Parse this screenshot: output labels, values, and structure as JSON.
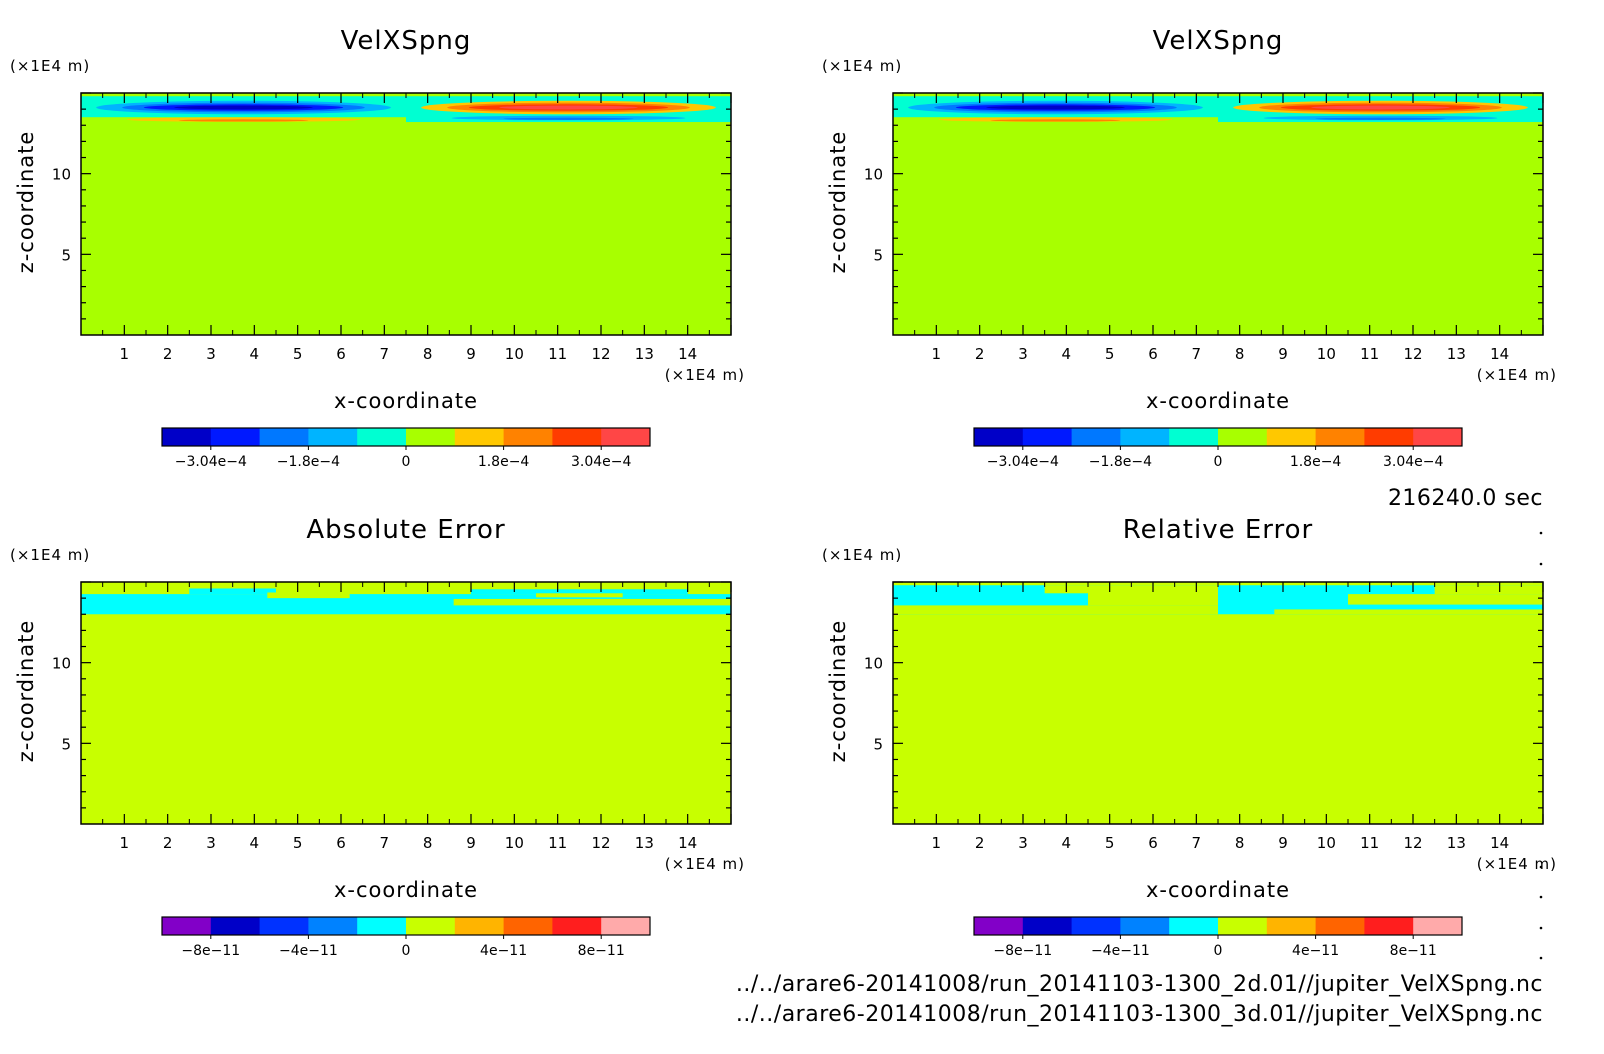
{
  "time_label": "216240.0 sec",
  "file_paths": [
    "../../arare6-20141008/run_20141103-1300_2d.01//jupiter_VelXSpng.nc",
    "../../arare6-20141008/run_20141103-1300_3d.01//jupiter_VelXSpng.nc"
  ],
  "chart_data": [
    {
      "type": "heatmap",
      "title": "VelXSpng",
      "xlabel": "x-coordinate",
      "ylabel": "z-coordinate",
      "x_unit": "(×1E4 m)",
      "y_unit": "(×1E4 m)",
      "xlim": [
        0,
        15
      ],
      "ylim": [
        0,
        15
      ],
      "x_ticks": [
        "1",
        "2",
        "3",
        "4",
        "5",
        "6",
        "7",
        "8",
        "9",
        "10",
        "11",
        "12",
        "13",
        "14"
      ],
      "y_ticks": [
        "5",
        "10"
      ],
      "background_color": "#a8ff00",
      "colorbar": {
        "colors": [
          "#0000c8",
          "#0019ff",
          "#0078ff",
          "#00b4ff",
          "#00ffd2",
          "#a8ff00",
          "#ffc800",
          "#ff8200",
          "#ff3c00",
          "#ff4646"
        ],
        "tick_labels": [
          "-3.04e-4",
          "-1.8e-4",
          "0",
          "1.8e-4",
          "3.04e-4"
        ]
      },
      "features": [
        {
          "shape": "rect",
          "x": [
            0,
            7.5
          ],
          "z": [
            13.5,
            14.8
          ],
          "color": "#00ffd2"
        },
        {
          "shape": "rect",
          "x": [
            7.5,
            15
          ],
          "z": [
            13.2,
            14.8
          ],
          "color": "#00ffd2"
        },
        {
          "shape": "ellipse",
          "cx": 3.75,
          "cz": 14.1,
          "rx": 3.4,
          "rz": 0.42,
          "color": "#00b4ff"
        },
        {
          "shape": "ellipse",
          "cx": 3.75,
          "cz": 14.1,
          "rx": 2.8,
          "rz": 0.3,
          "color": "#0078ff"
        },
        {
          "shape": "ellipse",
          "cx": 3.75,
          "cz": 14.1,
          "rx": 2.3,
          "rz": 0.2,
          "color": "#0019ff"
        },
        {
          "shape": "ellipse",
          "cx": 3.75,
          "cz": 14.1,
          "rx": 1.6,
          "rz": 0.12,
          "color": "#0000c8"
        },
        {
          "shape": "ellipse",
          "cx": 3.75,
          "cz": 13.35,
          "rx": 2.7,
          "rz": 0.14,
          "color": "#ffc800"
        },
        {
          "shape": "ellipse",
          "cx": 3.75,
          "cz": 13.3,
          "rx": 1.5,
          "rz": 0.07,
          "color": "#ff8200"
        },
        {
          "shape": "ellipse",
          "cx": 11.25,
          "cz": 14.1,
          "rx": 3.4,
          "rz": 0.42,
          "color": "#ffc800"
        },
        {
          "shape": "ellipse",
          "cx": 11.25,
          "cz": 14.1,
          "rx": 2.8,
          "rz": 0.3,
          "color": "#ff8200"
        },
        {
          "shape": "ellipse",
          "cx": 11.25,
          "cz": 14.1,
          "rx": 2.3,
          "rz": 0.2,
          "color": "#ff3c00"
        },
        {
          "shape": "ellipse",
          "cx": 11.25,
          "cz": 14.1,
          "rx": 1.6,
          "rz": 0.12,
          "color": "#ff4646"
        },
        {
          "shape": "ellipse",
          "cx": 11.25,
          "cz": 13.45,
          "rx": 2.7,
          "rz": 0.14,
          "color": "#00b4ff"
        },
        {
          "shape": "ellipse",
          "cx": 11.25,
          "cz": 13.4,
          "rx": 1.5,
          "rz": 0.07,
          "color": "#0078ff"
        }
      ]
    },
    {
      "type": "heatmap",
      "title": "VelXSpng",
      "xlabel": "x-coordinate",
      "ylabel": "z-coordinate",
      "x_unit": "(×1E4 m)",
      "y_unit": "(×1E4 m)",
      "xlim": [
        0,
        15
      ],
      "ylim": [
        0,
        15
      ],
      "x_ticks": [
        "1",
        "2",
        "3",
        "4",
        "5",
        "6",
        "7",
        "8",
        "9",
        "10",
        "11",
        "12",
        "13",
        "14"
      ],
      "y_ticks": [
        "5",
        "10"
      ],
      "background_color": "#a8ff00",
      "colorbar": {
        "colors": [
          "#0000c8",
          "#0019ff",
          "#0078ff",
          "#00b4ff",
          "#00ffd2",
          "#a8ff00",
          "#ffc800",
          "#ff8200",
          "#ff3c00",
          "#ff4646"
        ],
        "tick_labels": [
          "-3.04e-4",
          "-1.8e-4",
          "0",
          "1.8e-4",
          "3.04e-4"
        ]
      },
      "features": [
        {
          "shape": "rect",
          "x": [
            0,
            7.5
          ],
          "z": [
            13.5,
            14.8
          ],
          "color": "#00ffd2"
        },
        {
          "shape": "rect",
          "x": [
            7.5,
            15
          ],
          "z": [
            13.2,
            14.8
          ],
          "color": "#00ffd2"
        },
        {
          "shape": "ellipse",
          "cx": 3.75,
          "cz": 14.1,
          "rx": 3.4,
          "rz": 0.42,
          "color": "#00b4ff"
        },
        {
          "shape": "ellipse",
          "cx": 3.75,
          "cz": 14.1,
          "rx": 2.8,
          "rz": 0.3,
          "color": "#0078ff"
        },
        {
          "shape": "ellipse",
          "cx": 3.75,
          "cz": 14.1,
          "rx": 2.3,
          "rz": 0.2,
          "color": "#0019ff"
        },
        {
          "shape": "ellipse",
          "cx": 3.75,
          "cz": 14.1,
          "rx": 1.6,
          "rz": 0.12,
          "color": "#0000c8"
        },
        {
          "shape": "ellipse",
          "cx": 3.75,
          "cz": 13.35,
          "rx": 2.7,
          "rz": 0.14,
          "color": "#ffc800"
        },
        {
          "shape": "ellipse",
          "cx": 3.75,
          "cz": 13.3,
          "rx": 1.5,
          "rz": 0.07,
          "color": "#ff8200"
        },
        {
          "shape": "ellipse",
          "cx": 11.25,
          "cz": 14.1,
          "rx": 3.4,
          "rz": 0.42,
          "color": "#ffc800"
        },
        {
          "shape": "ellipse",
          "cx": 11.25,
          "cz": 14.1,
          "rx": 2.8,
          "rz": 0.3,
          "color": "#ff8200"
        },
        {
          "shape": "ellipse",
          "cx": 11.25,
          "cz": 14.1,
          "rx": 2.3,
          "rz": 0.2,
          "color": "#ff3c00"
        },
        {
          "shape": "ellipse",
          "cx": 11.25,
          "cz": 14.1,
          "rx": 1.6,
          "rz": 0.12,
          "color": "#ff4646"
        },
        {
          "shape": "ellipse",
          "cx": 11.25,
          "cz": 13.45,
          "rx": 2.7,
          "rz": 0.14,
          "color": "#00b4ff"
        },
        {
          "shape": "ellipse",
          "cx": 11.25,
          "cz": 13.4,
          "rx": 1.5,
          "rz": 0.07,
          "color": "#0078ff"
        }
      ]
    },
    {
      "type": "heatmap",
      "title": "Absolute Error",
      "xlabel": "x-coordinate",
      "ylabel": "z-coordinate",
      "x_unit": "(×1E4 m)",
      "y_unit": "(×1E4 m)",
      "xlim": [
        0,
        15
      ],
      "ylim": [
        0,
        15
      ],
      "x_ticks": [
        "1",
        "2",
        "3",
        "4",
        "5",
        "6",
        "7",
        "8",
        "9",
        "10",
        "11",
        "12",
        "13",
        "14"
      ],
      "y_ticks": [
        "5",
        "10"
      ],
      "background_color": "#c8ff00",
      "colorbar": {
        "colors": [
          "#8200c8",
          "#0000c8",
          "#0032ff",
          "#0082ff",
          "#00ffff",
          "#c8ff00",
          "#ffb400",
          "#ff6400",
          "#ff1e1e",
          "#ffaaaa"
        ],
        "tick_labels": [
          "-8e-11",
          "-4e-11",
          "0",
          "4e-11",
          "8e-11"
        ]
      },
      "features": [
        {
          "shape": "rect",
          "x": [
            0,
            15
          ],
          "z": [
            13.0,
            14.25
          ],
          "color": "#00ffff"
        },
        {
          "shape": "rect",
          "x": [
            2.5,
            4.5
          ],
          "z": [
            14.25,
            14.6
          ],
          "color": "#00ffff"
        },
        {
          "shape": "rect",
          "x": [
            4.3,
            6.2
          ],
          "z": [
            14.0,
            14.35
          ],
          "color": "#c8ff00"
        },
        {
          "shape": "rect",
          "x": [
            8.6,
            15
          ],
          "z": [
            13.55,
            13.95
          ],
          "color": "#c8ff00"
        },
        {
          "shape": "rect",
          "x": [
            9.0,
            14.0
          ],
          "z": [
            14.25,
            14.55
          ],
          "color": "#00ffff"
        },
        {
          "shape": "rect",
          "x": [
            10.5,
            12.5
          ],
          "z": [
            14.05,
            14.3
          ],
          "color": "#c8ff00"
        }
      ]
    },
    {
      "type": "heatmap",
      "title": "Relative Error",
      "xlabel": "x-coordinate",
      "ylabel": "z-coordinate",
      "x_unit": "(×1E4 m)",
      "y_unit": "(×1E4 m)",
      "xlim": [
        0,
        15
      ],
      "ylim": [
        0,
        15
      ],
      "x_ticks": [
        "1",
        "2",
        "3",
        "4",
        "5",
        "6",
        "7",
        "8",
        "9",
        "10",
        "11",
        "12",
        "13",
        "14"
      ],
      "y_ticks": [
        "5",
        "10"
      ],
      "background_color": "#c8ff00",
      "colorbar": {
        "colors": [
          "#8200c8",
          "#0000c8",
          "#0032ff",
          "#0082ff",
          "#00ffff",
          "#c8ff00",
          "#ffb400",
          "#ff6400",
          "#ff1e1e",
          "#ffaaaa"
        ],
        "tick_labels": [
          "-8e-11",
          "-4e-11",
          "0",
          "4e-11",
          "8e-11"
        ]
      },
      "features": [
        {
          "shape": "rect",
          "x": [
            0,
            15
          ],
          "z": [
            13.0,
            14.8
          ],
          "color": "#00ffff"
        },
        {
          "shape": "rect",
          "x": [
            0,
            7.5
          ],
          "z": [
            13.0,
            13.55
          ],
          "color": "#c8ff00"
        },
        {
          "shape": "rect",
          "x": [
            4.5,
            7.5
          ],
          "z": [
            13.55,
            14.8
          ],
          "color": "#c8ff00"
        },
        {
          "shape": "rect",
          "x": [
            3.5,
            4.5
          ],
          "z": [
            14.3,
            14.8
          ],
          "color": "#c8ff00"
        },
        {
          "shape": "rect",
          "x": [
            8.8,
            15
          ],
          "z": [
            13.0,
            13.3
          ],
          "color": "#c8ff00"
        },
        {
          "shape": "rect",
          "x": [
            10.5,
            15
          ],
          "z": [
            13.6,
            14.25
          ],
          "color": "#c8ff00"
        },
        {
          "shape": "rect",
          "x": [
            12.5,
            15
          ],
          "z": [
            14.25,
            14.8
          ],
          "color": "#c8ff00"
        }
      ]
    }
  ]
}
